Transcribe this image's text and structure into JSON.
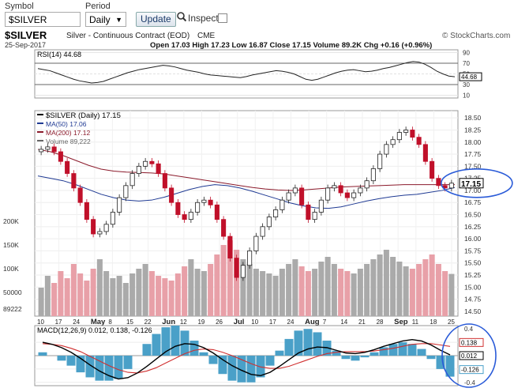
{
  "toolbar": {
    "symbol_label": "Symbol",
    "symbol_value": "$SILVER",
    "period_label": "Period",
    "period_value": "Daily",
    "update_label": "Update",
    "inspect_label": "Inspect"
  },
  "header": {
    "symbol": "$SILVER",
    "description": "Silver - Continuous Contract (EOD)",
    "exchange": "CME",
    "date": "25-Sep-2017",
    "quote": "Open 17.03  High 17.23  Low 16.87  Close 17.15  Volume 89.2K  Chg +0.16 (+0.96%)",
    "watermark": "© StockCharts.com"
  },
  "colors": {
    "rsi_line": "#222222",
    "ma50": "#1f3a93",
    "ma200": "#8b1a2b",
    "candle_up": "#ffffff",
    "candle_down": "#c0102a",
    "volume_up": "#aaaaaa",
    "volume_down": "#e8a0a8",
    "macd_line": "#000000",
    "signal_line": "#d03030",
    "histogram": "#4aa0c8",
    "highlight_circle": "#2a5bd8"
  },
  "chart_data": [
    {
      "type": "line",
      "title": "RSI(14) 44.68",
      "name": "RSI(14)",
      "y_ticks": [
        90,
        70,
        50,
        30,
        10
      ],
      "ylim": [
        5,
        95
      ],
      "current_label": "44.68",
      "values": [
        60,
        58,
        56,
        52,
        48,
        44,
        40,
        37,
        35,
        33,
        34,
        36,
        40,
        44,
        48,
        52,
        55,
        58,
        60,
        62,
        64,
        66,
        65,
        63,
        60,
        57,
        55,
        53,
        50,
        48,
        47,
        46,
        45,
        44,
        43,
        45,
        48,
        50,
        52,
        54,
        56,
        55,
        53,
        50,
        45,
        40,
        38,
        40,
        44,
        48,
        52,
        55,
        57,
        58,
        56,
        54,
        55,
        57,
        60,
        62,
        65,
        68,
        71,
        73,
        72,
        68,
        62,
        55,
        50,
        46,
        44.68
      ]
    },
    {
      "type": "candlestick",
      "title": "$SILVER (Daily) 17.15",
      "legend": [
        "$SILVER (Daily) 17.15",
        "MA(50) 17.06",
        "MA(200) 17.12",
        "Volume 89,222"
      ],
      "x_labels": [
        "10",
        "17",
        "24",
        "May",
        "8",
        "15",
        "22",
        "Jun",
        "12",
        "19",
        "26",
        "Jul",
        "10",
        "17",
        "24",
        "Aug",
        "7",
        "14",
        "21",
        "28",
        "Sep",
        "11",
        "18",
        "25"
      ],
      "y_ticks": [
        18.5,
        18.25,
        18.0,
        17.75,
        17.5,
        17.25,
        17.0,
        16.75,
        16.5,
        16.25,
        16.0,
        15.75,
        15.5,
        15.25,
        15.0,
        14.75,
        14.5
      ],
      "ylim": [
        14.4,
        18.65
      ],
      "current_label": "17.15",
      "closes": [
        17.85,
        17.9,
        17.8,
        17.6,
        17.35,
        17.05,
        16.75,
        16.4,
        16.1,
        16.15,
        16.3,
        16.55,
        16.85,
        17.1,
        17.35,
        17.5,
        17.6,
        17.55,
        17.35,
        17.05,
        16.75,
        16.5,
        16.4,
        16.55,
        16.75,
        16.8,
        16.7,
        16.4,
        16.05,
        15.6,
        15.2,
        15.45,
        15.75,
        16.05,
        16.25,
        16.45,
        16.6,
        16.8,
        16.95,
        17.05,
        16.7,
        16.4,
        16.55,
        16.8,
        17.05,
        17.1,
        16.95,
        16.85,
        16.95,
        17.05,
        17.2,
        17.45,
        17.75,
        17.95,
        18.05,
        18.2,
        18.25,
        18.1,
        17.95,
        17.6,
        17.25,
        17.1,
        17.05,
        17.15
      ],
      "ma50": [
        17.3,
        17.25,
        17.2,
        17.12,
        17.02,
        16.92,
        16.85,
        16.8,
        16.78,
        16.8,
        16.86,
        16.94,
        17.02,
        17.08,
        17.12,
        17.1,
        17.05,
        16.98,
        16.9,
        16.82,
        16.74,
        16.68,
        16.64,
        16.63,
        16.66,
        16.72,
        16.78,
        16.83,
        16.87,
        16.9,
        16.92,
        16.96,
        17.0,
        17.06
      ],
      "ma200": [
        17.85,
        17.8,
        17.72,
        17.62,
        17.52,
        17.44,
        17.4,
        17.38,
        17.37,
        17.36,
        17.34,
        17.3,
        17.26,
        17.22,
        17.18,
        17.14,
        17.1,
        17.06,
        17.03,
        17.01,
        17.0,
        17.01,
        17.03,
        17.05,
        17.07,
        17.08,
        17.09,
        17.1,
        17.11,
        17.12,
        17.12,
        17.12,
        17.12,
        17.12
      ]
    },
    {
      "type": "bar",
      "title": "Volume 89,222",
      "name": "Volume",
      "y_ticks": [
        "200K",
        "150K",
        "100K",
        "50000"
      ],
      "current_label": "89222",
      "values": [
        60,
        85,
        70,
        95,
        80,
        110,
        90,
        75,
        100,
        120,
        95,
        80,
        85,
        70,
        90,
        100,
        110,
        95,
        85,
        80,
        75,
        90,
        105,
        120,
        100,
        95,
        110,
        130,
        150,
        160,
        140,
        120,
        110,
        100,
        95,
        90,
        85,
        100,
        110,
        120,
        105,
        95,
        100,
        115,
        125,
        110,
        100,
        95,
        90,
        100,
        110,
        120,
        130,
        140,
        125,
        115,
        105,
        100,
        110,
        120,
        130,
        110,
        95,
        89
      ]
    },
    {
      "type": "line",
      "title": "MACD(12,26,9) 0.012, 0.138, -0.126",
      "series_names": [
        "MACD(12,26,9)",
        "Signal",
        "Histogram"
      ],
      "y_ticks": [
        0.4,
        0.2,
        0.0,
        -0.2,
        -0.4
      ],
      "ylim": [
        -0.45,
        0.45
      ],
      "current_labels": [
        "0.138",
        "0.012",
        "-0.126"
      ],
      "macd": [
        0.2,
        0.17,
        0.12,
        0.05,
        -0.04,
        -0.14,
        -0.23,
        -0.3,
        -0.35,
        -0.33,
        -0.26,
        -0.16,
        -0.05,
        0.06,
        0.14,
        0.18,
        0.17,
        0.12,
        0.04,
        -0.06,
        -0.15,
        -0.22,
        -0.28,
        -0.3,
        -0.25,
        -0.16,
        -0.06,
        0.04,
        0.1,
        0.13,
        0.12,
        0.08,
        0.04,
        0.03,
        0.05,
        0.09,
        0.14,
        0.18,
        0.22,
        0.24,
        0.22,
        0.16,
        0.08,
        0.012
      ],
      "signal": [
        0.18,
        0.17,
        0.15,
        0.11,
        0.06,
        -0.01,
        -0.08,
        -0.15,
        -0.21,
        -0.25,
        -0.26,
        -0.23,
        -0.18,
        -0.11,
        -0.04,
        0.03,
        0.08,
        0.1,
        0.09,
        0.05,
        0.0,
        -0.06,
        -0.12,
        -0.17,
        -0.19,
        -0.19,
        -0.16,
        -0.11,
        -0.06,
        -0.01,
        0.03,
        0.05,
        0.06,
        0.06,
        0.06,
        0.07,
        0.09,
        0.11,
        0.14,
        0.17,
        0.18,
        0.18,
        0.16,
        0.138
      ]
    }
  ]
}
